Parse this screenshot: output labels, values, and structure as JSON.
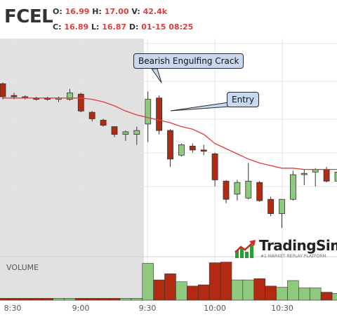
{
  "header": {
    "symbol": "FCEL",
    "open_label": "O:",
    "open": "16.99",
    "high_label": "H:",
    "high": "17.00",
    "volume_label": "V:",
    "volume": "42.4k",
    "close_label": "C:",
    "close": "16.89",
    "low_label": "L:",
    "low": "16.87",
    "date_label": "D:",
    "date": "01-15 08:25"
  },
  "annotations": {
    "bearish": "Bearish Engulfing Crack",
    "entry": "Entry"
  },
  "volume_label": "VOLUME",
  "brand": {
    "name": "TradingSim",
    "tagline": "#1 MARKET REPLAY PLATFORM"
  },
  "colors": {
    "up": "#8fc97e",
    "down": "#b22a12",
    "ma": "#e03c3c",
    "premarket_shade": "#e1e1e1",
    "grid": "#e6e6e6"
  },
  "chart_data": {
    "type": "candlestick",
    "x_axis_ticks": [
      "8:30",
      "9:00",
      "9:30",
      "10:00",
      "10:30"
    ],
    "ylim": [
      15.95,
      17.3
    ],
    "candles": [
      {
        "o": 16.99,
        "h": 17.0,
        "l": 16.87,
        "c": 16.89
      },
      {
        "o": 16.9,
        "h": 16.92,
        "l": 16.87,
        "c": 16.89
      },
      {
        "o": 16.89,
        "h": 16.9,
        "l": 16.87,
        "c": 16.88
      },
      {
        "o": 16.88,
        "h": 16.89,
        "l": 16.86,
        "c": 16.87
      },
      {
        "o": 16.88,
        "h": 16.89,
        "l": 16.86,
        "c": 16.87
      },
      {
        "o": 16.87,
        "h": 16.89,
        "l": 16.85,
        "c": 16.88
      },
      {
        "o": 16.87,
        "h": 16.95,
        "l": 16.86,
        "c": 16.92
      },
      {
        "o": 16.91,
        "h": 16.92,
        "l": 16.77,
        "c": 16.78
      },
      {
        "o": 16.77,
        "h": 16.78,
        "l": 16.7,
        "c": 16.72
      },
      {
        "o": 16.71,
        "h": 16.72,
        "l": 16.66,
        "c": 16.67
      },
      {
        "o": 16.66,
        "h": 16.66,
        "l": 16.58,
        "c": 16.6
      },
      {
        "o": 16.6,
        "h": 16.63,
        "l": 16.55,
        "c": 16.62
      },
      {
        "o": 16.6,
        "h": 16.66,
        "l": 16.52,
        "c": 16.63
      },
      {
        "o": 16.68,
        "h": 16.93,
        "l": 16.54,
        "c": 16.87
      },
      {
        "o": 16.88,
        "h": 16.9,
        "l": 16.6,
        "c": 16.63
      },
      {
        "o": 16.63,
        "h": 16.64,
        "l": 16.35,
        "c": 16.41
      },
      {
        "o": 16.44,
        "h": 16.53,
        "l": 16.43,
        "c": 16.52
      },
      {
        "o": 16.51,
        "h": 16.53,
        "l": 16.46,
        "c": 16.48
      },
      {
        "o": 16.48,
        "h": 16.52,
        "l": 16.44,
        "c": 16.47
      },
      {
        "o": 16.45,
        "h": 16.46,
        "l": 16.2,
        "c": 16.25
      },
      {
        "o": 16.24,
        "h": 16.25,
        "l": 16.07,
        "c": 16.1
      },
      {
        "o": 16.14,
        "h": 16.25,
        "l": 16.09,
        "c": 16.23
      },
      {
        "o": 16.11,
        "h": 16.38,
        "l": 16.1,
        "c": 16.24
      },
      {
        "o": 16.23,
        "h": 16.24,
        "l": 16.08,
        "c": 16.09
      },
      {
        "o": 16.1,
        "h": 16.12,
        "l": 15.97,
        "c": 15.99
      },
      {
        "o": 15.99,
        "h": 16.1,
        "l": 15.88,
        "c": 16.1
      },
      {
        "o": 16.1,
        "h": 16.32,
        "l": 16.09,
        "c": 16.29
      },
      {
        "o": 16.29,
        "h": 16.33,
        "l": 16.21,
        "c": 16.3
      },
      {
        "o": 16.31,
        "h": 16.34,
        "l": 16.2,
        "c": 16.33
      },
      {
        "o": 16.33,
        "h": 16.35,
        "l": 16.23,
        "c": 16.24
      },
      {
        "o": 16.24,
        "h": 16.34,
        "l": 16.23,
        "c": 16.31
      }
    ],
    "moving_average": [
      16.88,
      16.88,
      16.88,
      16.88,
      16.88,
      16.88,
      16.88,
      16.88,
      16.87,
      16.85,
      16.82,
      16.78,
      16.75,
      16.73,
      16.71,
      16.69,
      16.66,
      16.64,
      16.6,
      16.53,
      16.49,
      16.45,
      16.41,
      16.38,
      16.36,
      16.34,
      16.34,
      16.33,
      16.33,
      16.33,
      16.33
    ],
    "volume": [
      0.3,
      0.3,
      0.3,
      0.3,
      0.3,
      0.3,
      0.3,
      0.3,
      0.3,
      0.3,
      0.3,
      0.3,
      0.3,
      6.0,
      3.3,
      4.3,
      3.0,
      2.3,
      2.5,
      6.1,
      6.2,
      3.3,
      3.3,
      3.5,
      2.3,
      2.1,
      3.2,
      2.0,
      2.0,
      1.3,
      1.1
    ],
    "volume_ylim": [
      0,
      6.4
    ]
  }
}
